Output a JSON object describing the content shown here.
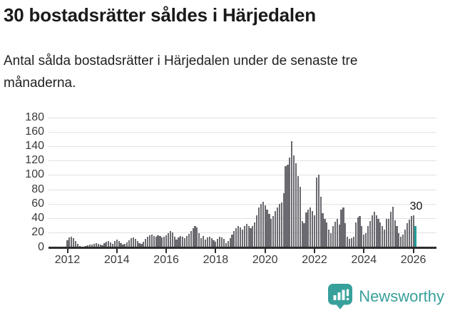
{
  "header": {
    "title": "30 bostadsrätter såldes i Härjedalen",
    "subtitle": "Antal sålda bostadsrätter i Härjedalen under de senaste tre månaderna."
  },
  "chart_data": {
    "type": "bar",
    "title": "30 bostadsrätter såldes i Härjedalen",
    "ylabel": "",
    "xlabel": "",
    "frequency": "monthly",
    "x_start": "2012-01",
    "x_end": "2026-02",
    "values": [
      10,
      14,
      15,
      13,
      9,
      5,
      2,
      1,
      1,
      2,
      3,
      4,
      4,
      5,
      6,
      5,
      4,
      3,
      6,
      8,
      9,
      7,
      5,
      9,
      11,
      9,
      6,
      4,
      5,
      7,
      10,
      13,
      14,
      12,
      9,
      6,
      5,
      8,
      12,
      15,
      17,
      18,
      16,
      15,
      17,
      16,
      14,
      15,
      17,
      20,
      23,
      21,
      15,
      11,
      14,
      16,
      15,
      13,
      16,
      19,
      23,
      27,
      30,
      28,
      20,
      13,
      16,
      11,
      14,
      15,
      13,
      10,
      8,
      12,
      15,
      14,
      12,
      6,
      9,
      13,
      18,
      23,
      27,
      30,
      28,
      25,
      30,
      33,
      30,
      27,
      30,
      35,
      45,
      55,
      60,
      63,
      58,
      52,
      46,
      40,
      44,
      50,
      55,
      60,
      62,
      75,
      113,
      115,
      125,
      147,
      128,
      117,
      99,
      84,
      37,
      34,
      48,
      52,
      55,
      50,
      45,
      97,
      101,
      70,
      47,
      40,
      35,
      25,
      20,
      30,
      36,
      40,
      32,
      52,
      55,
      34,
      15,
      12,
      13,
      15,
      35,
      42,
      44,
      30,
      18,
      20,
      30,
      37,
      45,
      49,
      45,
      40,
      35,
      30,
      25,
      40,
      40,
      49,
      56,
      38,
      30,
      20,
      15,
      18,
      25,
      34,
      39,
      44,
      45,
      30
    ],
    "highlight_last": true,
    "highlight_value": 30,
    "annotation": "30",
    "ylim": [
      0,
      180
    ],
    "yticks": [
      0,
      20,
      40,
      60,
      80,
      100,
      120,
      140,
      160,
      180
    ],
    "xticks": [
      2012,
      2014,
      2016,
      2018,
      2020,
      2022,
      2024,
      2026
    ],
    "grid": "horizontal",
    "legend": "none",
    "bar_color": "#6a6a70",
    "highlight_color": "#1f9e99"
  },
  "footer": {
    "brand": "Newsworthy",
    "brand_color": "#38a09b",
    "logo_icon": "bar-chart-pin-icon"
  }
}
